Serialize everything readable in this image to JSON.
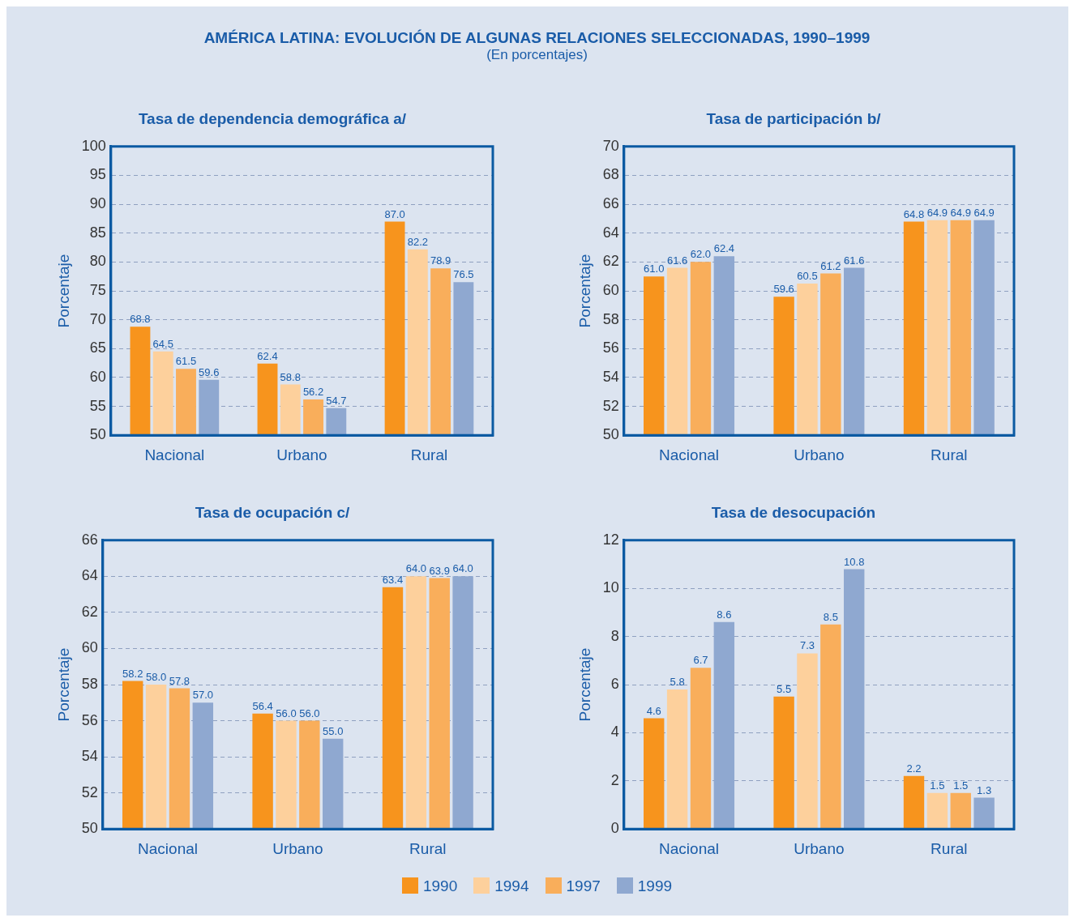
{
  "chart_data": [
    {
      "type": "bar",
      "title": "Tasa de dependencia demográfica a/",
      "ylabel": "Porcentaje",
      "annotations": [
        "AMÉRICA LATINA: EVOLUCIÓN DE ALGUNAS RELACIONES SELECCIONADAS, 1990–1999",
        "(En porcentajes)"
      ],
      "categories": [
        "Nacional",
        "Urbano",
        "Rural"
      ],
      "ylim": [
        50,
        100
      ],
      "yticks": [
        50,
        55,
        60,
        65,
        70,
        75,
        80,
        85,
        90,
        95,
        100
      ],
      "grid": "y",
      "legend": "bottom",
      "series": [
        {
          "name": "1990",
          "color": "#f7941d",
          "values": [
            68.8,
            62.4,
            87.0
          ],
          "value_labels": [
            "68.8",
            "62.4",
            "87.0"
          ]
        },
        {
          "name": "1994",
          "color": "#fdd09c",
          "values": [
            64.5,
            58.8,
            82.2
          ],
          "value_labels": [
            "64.5",
            "58.8",
            "82.2"
          ]
        },
        {
          "name": "1997",
          "color": "#f9ae5b",
          "values": [
            61.5,
            56.2,
            78.9
          ],
          "value_labels": [
            "61.5",
            "56.2",
            "78.9"
          ]
        },
        {
          "name": "1999",
          "color": "#8fa8d0",
          "values": [
            59.6,
            54.7,
            76.5
          ],
          "value_labels": [
            "59.6",
            "54.7",
            "76.5"
          ]
        }
      ]
    },
    {
      "type": "bar",
      "title": "Tasa de participación b/",
      "ylabel": "Porcentaje",
      "categories": [
        "Nacional",
        "Urbano",
        "Rural"
      ],
      "ylim": [
        50,
        70
      ],
      "yticks": [
        50,
        52,
        54,
        56,
        58,
        60,
        62,
        64,
        66,
        68,
        70
      ],
      "grid": "y",
      "legend": "bottom",
      "series": [
        {
          "name": "1990",
          "color": "#f7941d",
          "values": [
            61.0,
            59.6,
            64.8
          ],
          "value_labels": [
            "61.0",
            "59.6",
            "64.8"
          ]
        },
        {
          "name": "1994",
          "color": "#fdd09c",
          "values": [
            61.6,
            60.5,
            64.9
          ],
          "value_labels": [
            "61.6",
            "60.5",
            "64.9"
          ]
        },
        {
          "name": "1997",
          "color": "#f9ae5b",
          "values": [
            62.0,
            61.2,
            64.9
          ],
          "value_labels": [
            "62.0",
            "61.2",
            "64.9"
          ]
        },
        {
          "name": "1999",
          "color": "#8fa8d0",
          "values": [
            62.4,
            61.6,
            64.9
          ],
          "value_labels": [
            "62.4",
            "61.6",
            "64.9"
          ]
        }
      ]
    },
    {
      "type": "bar",
      "title": "Tasa de ocupación c/",
      "ylabel": "Porcentaje",
      "categories": [
        "Nacional",
        "Urbano",
        "Rural"
      ],
      "ylim": [
        50,
        66
      ],
      "yticks": [
        50,
        52,
        54,
        56,
        58,
        60,
        62,
        64,
        66
      ],
      "grid": "y",
      "legend": "bottom",
      "series": [
        {
          "name": "1990",
          "color": "#f7941d",
          "values": [
            58.2,
            56.4,
            63.4
          ],
          "value_labels": [
            "58.2",
            "56.4",
            "63.4"
          ]
        },
        {
          "name": "1994",
          "color": "#fdd09c",
          "values": [
            58.0,
            56.0,
            64.0
          ],
          "value_labels": [
            "58.0",
            "56.0",
            "64.0"
          ]
        },
        {
          "name": "1997",
          "color": "#f9ae5b",
          "values": [
            57.8,
            56.0,
            63.9
          ],
          "value_labels": [
            "57.8",
            "56.0",
            "63.9"
          ]
        },
        {
          "name": "1999",
          "color": "#8fa8d0",
          "values": [
            57.0,
            55.0,
            64.0
          ],
          "value_labels": [
            "57.0",
            "55.0",
            "64.0"
          ]
        }
      ]
    },
    {
      "type": "bar",
      "title": "Tasa de desocupación",
      "ylabel": "Porcentaje",
      "categories": [
        "Nacional",
        "Urbano",
        "Rural"
      ],
      "ylim": [
        0,
        12
      ],
      "yticks": [
        0,
        2,
        4,
        6,
        8,
        10,
        12
      ],
      "grid": "y",
      "legend": "bottom",
      "series": [
        {
          "name": "1990",
          "color": "#f7941d",
          "values": [
            4.6,
            5.5,
            2.2
          ],
          "value_labels": [
            "4.6",
            "5.5",
            "2.2"
          ]
        },
        {
          "name": "1994",
          "color": "#fdd09c",
          "values": [
            5.8,
            7.3,
            1.5
          ],
          "value_labels": [
            "5.8",
            "7.3",
            "1.5"
          ]
        },
        {
          "name": "1997",
          "color": "#f9ae5b",
          "values": [
            6.7,
            8.5,
            1.5
          ],
          "value_labels": [
            "6.7",
            "8.5",
            "1.5"
          ]
        },
        {
          "name": "1999",
          "color": "#8fa8d0",
          "values": [
            8.6,
            10.8,
            1.3
          ],
          "value_labels": [
            "8.6",
            "10.8",
            "1.3"
          ]
        }
      ]
    }
  ]
}
